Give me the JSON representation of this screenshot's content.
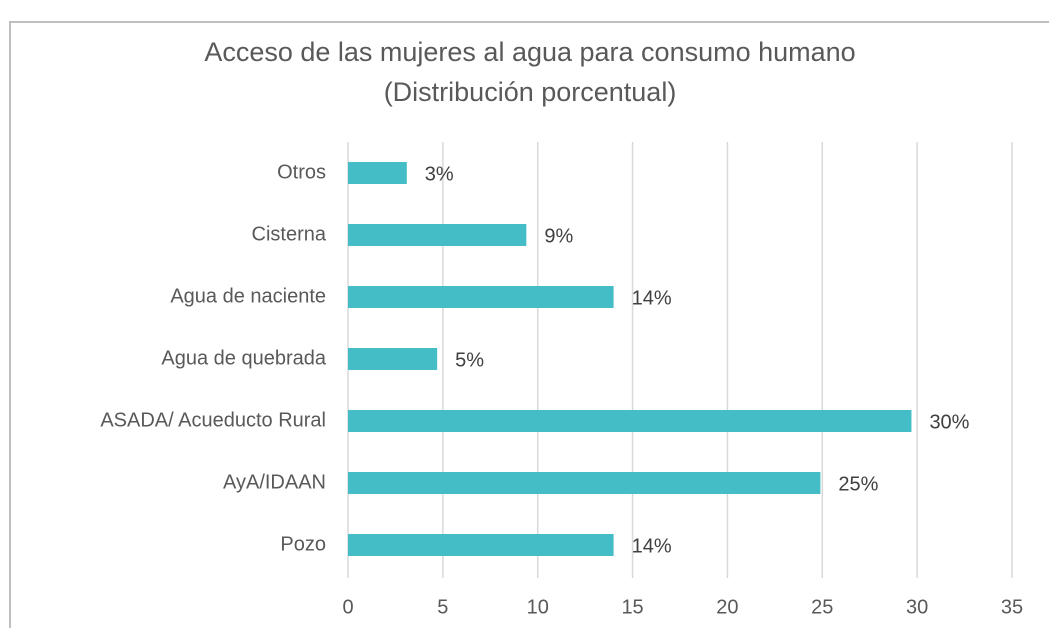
{
  "chart_data": {
    "type": "bar",
    "orientation": "horizontal",
    "title": "Acceso de las mujeres al agua para consumo humano",
    "subtitle": "(Distribución porcentual)",
    "categories": [
      "Otros",
      "Cisterna",
      "Agua de naciente",
      "Agua de quebrada",
      "ASADA/ Acueducto Rural",
      "AyA/IDAAN",
      "Pozo"
    ],
    "values": [
      3.1,
      9.4,
      14,
      4.7,
      29.7,
      24.9,
      14
    ],
    "value_labels": [
      "3%",
      "9%",
      "14%",
      "5%",
      "30%",
      "25%",
      "14%"
    ],
    "color": "#45bdc6",
    "xlim": [
      0,
      35
    ],
    "xticks": [
      0,
      5,
      10,
      15,
      20,
      25,
      30,
      35
    ],
    "grid": true
  }
}
